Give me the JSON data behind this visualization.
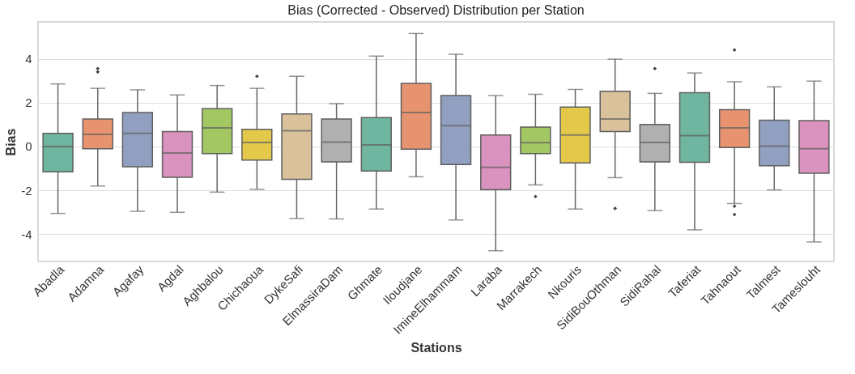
{
  "chart_data": {
    "type": "box",
    "title": "Bias (Corrected - Observed) Distribution per Station",
    "xlabel": "Stations",
    "ylabel": "Bias",
    "categories": [
      "Abadla",
      "Adamna",
      "Agafay",
      "Agdal",
      "Aghbalou",
      "Chichaoua",
      "DykeSafi",
      "ElmassiraDam",
      "Ghmate",
      "Iloudjane",
      "ImineElhammam",
      "Laraba",
      "Marrakech",
      "Nkouris",
      "SidiBouOthman",
      "SidiRahal",
      "Taferiat",
      "Tahnaout",
      "Talmest",
      "Tameslouht"
    ],
    "boxes": [
      {
        "low": -3.05,
        "q1": -1.15,
        "median": 0.0,
        "q3": 0.6,
        "high": 2.85
      },
      {
        "low": -1.8,
        "q1": -0.1,
        "median": 0.55,
        "q3": 1.25,
        "high": 2.65,
        "outliers": [
          3.4,
          3.55
        ]
      },
      {
        "low": -2.95,
        "q1": -0.92,
        "median": 0.6,
        "q3": 1.55,
        "high": 2.58
      },
      {
        "low": -3.0,
        "q1": -1.4,
        "median": -0.3,
        "q3": 0.68,
        "high": 2.35
      },
      {
        "low": -2.08,
        "q1": -0.32,
        "median": 0.85,
        "q3": 1.72,
        "high": 2.78
      },
      {
        "low": -1.95,
        "q1": -0.62,
        "median": 0.18,
        "q3": 0.78,
        "high": 2.65,
        "outliers": [
          3.2
        ]
      },
      {
        "low": -3.28,
        "q1": -1.5,
        "median": 0.72,
        "q3": 1.48,
        "high": 3.2
      },
      {
        "low": -3.3,
        "q1": -0.7,
        "median": 0.2,
        "q3": 1.25,
        "high": 1.95
      },
      {
        "low": -2.85,
        "q1": -1.12,
        "median": 0.07,
        "q3": 1.32,
        "high": 4.12
      },
      {
        "low": -1.38,
        "q1": -0.12,
        "median": 1.55,
        "q3": 2.88,
        "high": 5.15
      },
      {
        "low": -3.35,
        "q1": -0.82,
        "median": 0.95,
        "q3": 2.32,
        "high": 4.2
      },
      {
        "low": -4.75,
        "q1": -1.97,
        "median": -0.95,
        "q3": 0.52,
        "high": 2.32
      },
      {
        "low": -1.75,
        "q1": -0.32,
        "median": 0.17,
        "q3": 0.88,
        "high": 2.38,
        "outliers": [
          -2.28
        ]
      },
      {
        "low": -2.85,
        "q1": -0.75,
        "median": 0.52,
        "q3": 1.8,
        "high": 2.6
      },
      {
        "low": -1.42,
        "q1": 0.68,
        "median": 1.25,
        "q3": 2.52,
        "high": 3.98,
        "outliers": [
          -2.82
        ]
      },
      {
        "low": -2.92,
        "q1": -0.7,
        "median": 0.18,
        "q3": 1.0,
        "high": 2.42,
        "outliers": [
          3.55
        ]
      },
      {
        "low": -3.8,
        "q1": -0.72,
        "median": 0.5,
        "q3": 2.45,
        "high": 3.35
      },
      {
        "low": -2.6,
        "q1": -0.05,
        "median": 0.85,
        "q3": 1.68,
        "high": 2.95,
        "outliers": [
          4.4,
          -2.72,
          -3.1
        ]
      },
      {
        "low": -1.98,
        "q1": -0.88,
        "median": 0.02,
        "q3": 1.2,
        "high": 2.72
      },
      {
        "low": -4.35,
        "q1": -1.22,
        "median": -0.1,
        "q3": 1.18,
        "high": 2.98
      }
    ],
    "colors": [
      "#70b59f",
      "#e8936f",
      "#91a0c1",
      "#da92bf",
      "#a3c763",
      "#e3c84a",
      "#d9c19b",
      "#b0b0b0",
      "#70b59f",
      "#e8936f",
      "#91a0c1",
      "#da92bf",
      "#a3c763",
      "#e3c84a",
      "#d9c19b",
      "#b0b0b0",
      "#70b59f",
      "#e8936f",
      "#91a0c1",
      "#da92bf"
    ],
    "ylim": [
      -5.24,
      5.68
    ],
    "yticks": [
      -4,
      -2,
      0,
      2,
      4
    ],
    "grid": "y"
  }
}
